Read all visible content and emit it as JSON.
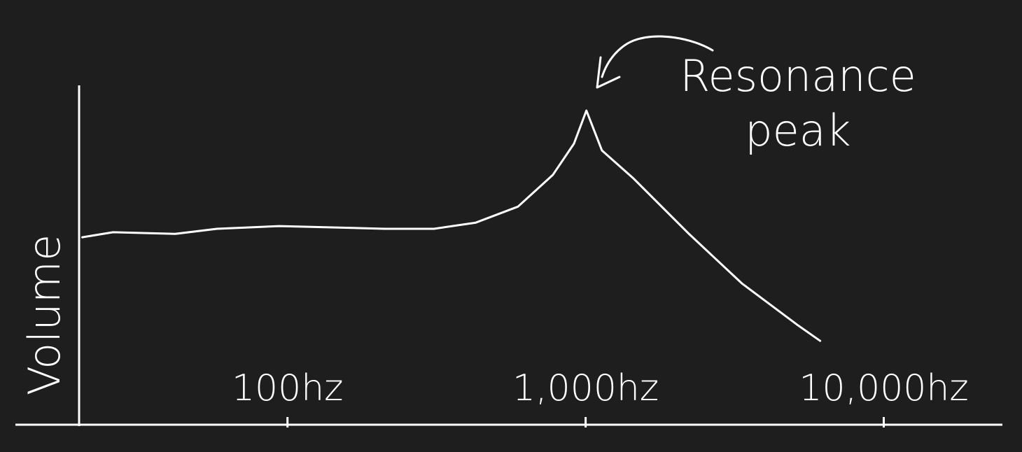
{
  "chart_data": {
    "type": "line",
    "y_label": "Volume",
    "annotation": "Resonance peak",
    "x_scale": "log",
    "xlim": [
      20,
      25000
    ],
    "ylim": [
      0,
      100
    ],
    "xticks": [
      {
        "value": 100,
        "label": "100hz"
      },
      {
        "value": 1000,
        "label": "1,000hz"
      },
      {
        "value": 10000,
        "label": "10,000hz"
      }
    ],
    "series": [
      {
        "color": "#ffffff",
        "x": [
          20.5,
          26,
          42,
          58,
          94,
          212,
          310,
          428,
          593,
          776,
          914,
          1006,
          1134,
          1446,
          2228,
          3340,
          5150,
          6120
        ],
        "values": [
          55,
          56.5,
          56,
          57.5,
          58.3,
          57.5,
          57.5,
          59.3,
          64,
          73.3,
          82.5,
          92.2,
          80.5,
          72.3,
          55.9,
          41.5,
          29.2,
          24.6
        ]
      }
    ]
  }
}
